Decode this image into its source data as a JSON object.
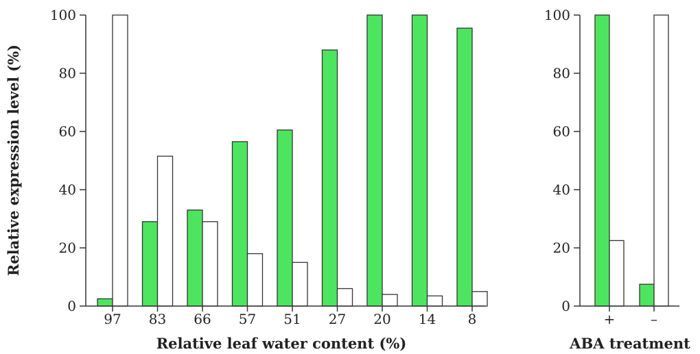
{
  "colors": {
    "filled": "#4de55f",
    "open": "#ffffff",
    "stroke": "#333333"
  },
  "chart_data": [
    {
      "type": "bar",
      "categories": [
        "97",
        "83",
        "66",
        "57",
        "51",
        "27",
        "20",
        "14",
        "8"
      ],
      "series": [
        {
          "values": [
            2.5,
            29,
            33,
            56.5,
            60.5,
            88,
            100,
            100,
            95.5
          ]
        },
        {
          "values": [
            100,
            51.5,
            29,
            18,
            15,
            6,
            4,
            3.5,
            5
          ]
        }
      ],
      "xlabel": "Relative leaf water content (%)",
      "ylabel": "Relative expression level (%)",
      "ylim": [
        0,
        100
      ],
      "yticks": [
        "0",
        "20",
        "40",
        "60",
        "80",
        "100"
      ],
      "grid": false
    },
    {
      "type": "bar",
      "categories": [
        "+",
        "–"
      ],
      "series": [
        {
          "values": [
            100,
            7.5
          ]
        },
        {
          "values": [
            22.5,
            100
          ]
        }
      ],
      "xlabel": "ABA treatment",
      "ylabel": "",
      "ylim": [
        0,
        100
      ],
      "yticks": [
        "0",
        "20",
        "40",
        "60",
        "80",
        "100"
      ],
      "grid": false
    }
  ]
}
